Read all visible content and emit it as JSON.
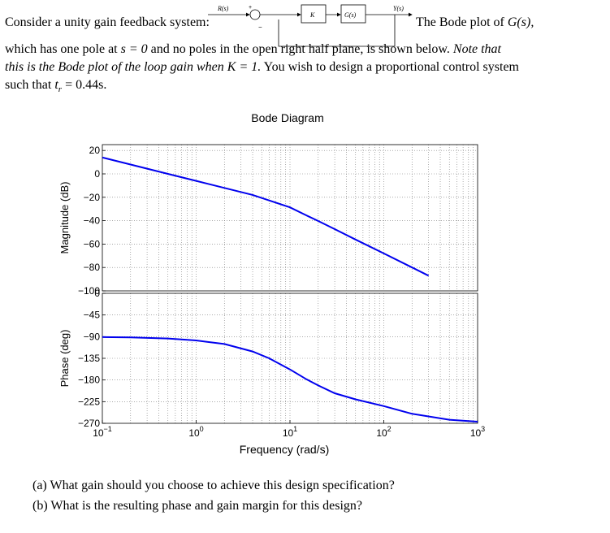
{
  "problem": {
    "intro": "Consider a unity gain feedback system:",
    "bode_intro_a": "The Bode plot of ",
    "bode_intro_b": "G(s),",
    "line2_a": "which has one pole at ",
    "line2_b": "s = 0",
    "line2_c": " and no poles in the open right half plane, is shown below.",
    "line2_note": "Note that",
    "line3_note": "this is the Bode plot of the loop gain when ",
    "line3_k": "K = 1.",
    "line3_c": " You wish to design a proportional control system",
    "line4_a": "such that ",
    "line4_b": "t",
    "line4_sub": "r",
    "line4_c": " = 0.44s.",
    "question_a": "(a) What gain should you choose to achieve this design specification?",
    "question_b": "(b) What is the resulting phase and gain margin for this design?"
  },
  "block_diagram": {
    "input_label": "R(s)",
    "output_label": "Y(s)",
    "plus_sign": "+",
    "minus_sign": "−",
    "gain_label": "K",
    "plant_label": "G(s)"
  },
  "chart_data": {
    "type": "line",
    "title": "Bode Diagram",
    "xlabel": "Frequency (rad/s)",
    "xscale": "log",
    "xlim": [
      0.1,
      1000
    ],
    "x_ticks": [
      {
        "base": "10",
        "exp": "−1"
      },
      {
        "base": "10",
        "exp": "0"
      },
      {
        "base": "10",
        "exp": "1"
      },
      {
        "base": "10",
        "exp": "2"
      },
      {
        "base": "10",
        "exp": "3"
      }
    ],
    "grid": true,
    "magnitude": {
      "ylabel": "Magnitude (dB)",
      "ylim": [
        -100,
        25
      ],
      "yticks": [
        "20",
        "0",
        "−20",
        "−40",
        "−60",
        "−80",
        "−100"
      ],
      "ytick_values": [
        20,
        0,
        -20,
        -40,
        -60,
        -80,
        -100
      ],
      "series_x": [
        0.1,
        0.2,
        0.5,
        1,
        2,
        4,
        6,
        10,
        15,
        20,
        30,
        50,
        100,
        200,
        300
      ],
      "series_y": [
        14,
        8,
        0,
        -6,
        -12,
        -18,
        -22.7,
        -28.6,
        -35.5,
        -40.3,
        -47.2,
        -56.1,
        -68,
        -80,
        -87
      ]
    },
    "phase": {
      "ylabel": "Phase (deg)",
      "ylim": [
        -270,
        0
      ],
      "yticks": [
        "0",
        "−45",
        "−90",
        "−135",
        "−180",
        "−225",
        "−270"
      ],
      "ytick_values": [
        0,
        -45,
        -90,
        -135,
        -180,
        -225,
        -270
      ],
      "series_x": [
        0.1,
        0.2,
        0.5,
        1,
        2,
        4,
        6,
        10,
        15,
        20,
        30,
        50,
        100,
        200,
        500,
        1000
      ],
      "series_y": [
        -90.8,
        -91.6,
        -93.9,
        -97.8,
        -105.3,
        -120.8,
        -135,
        -158.2,
        -178.6,
        -191.4,
        -207.6,
        -220.3,
        -234.3,
        -250.3,
        -262.6,
        -266.7
      ]
    }
  }
}
